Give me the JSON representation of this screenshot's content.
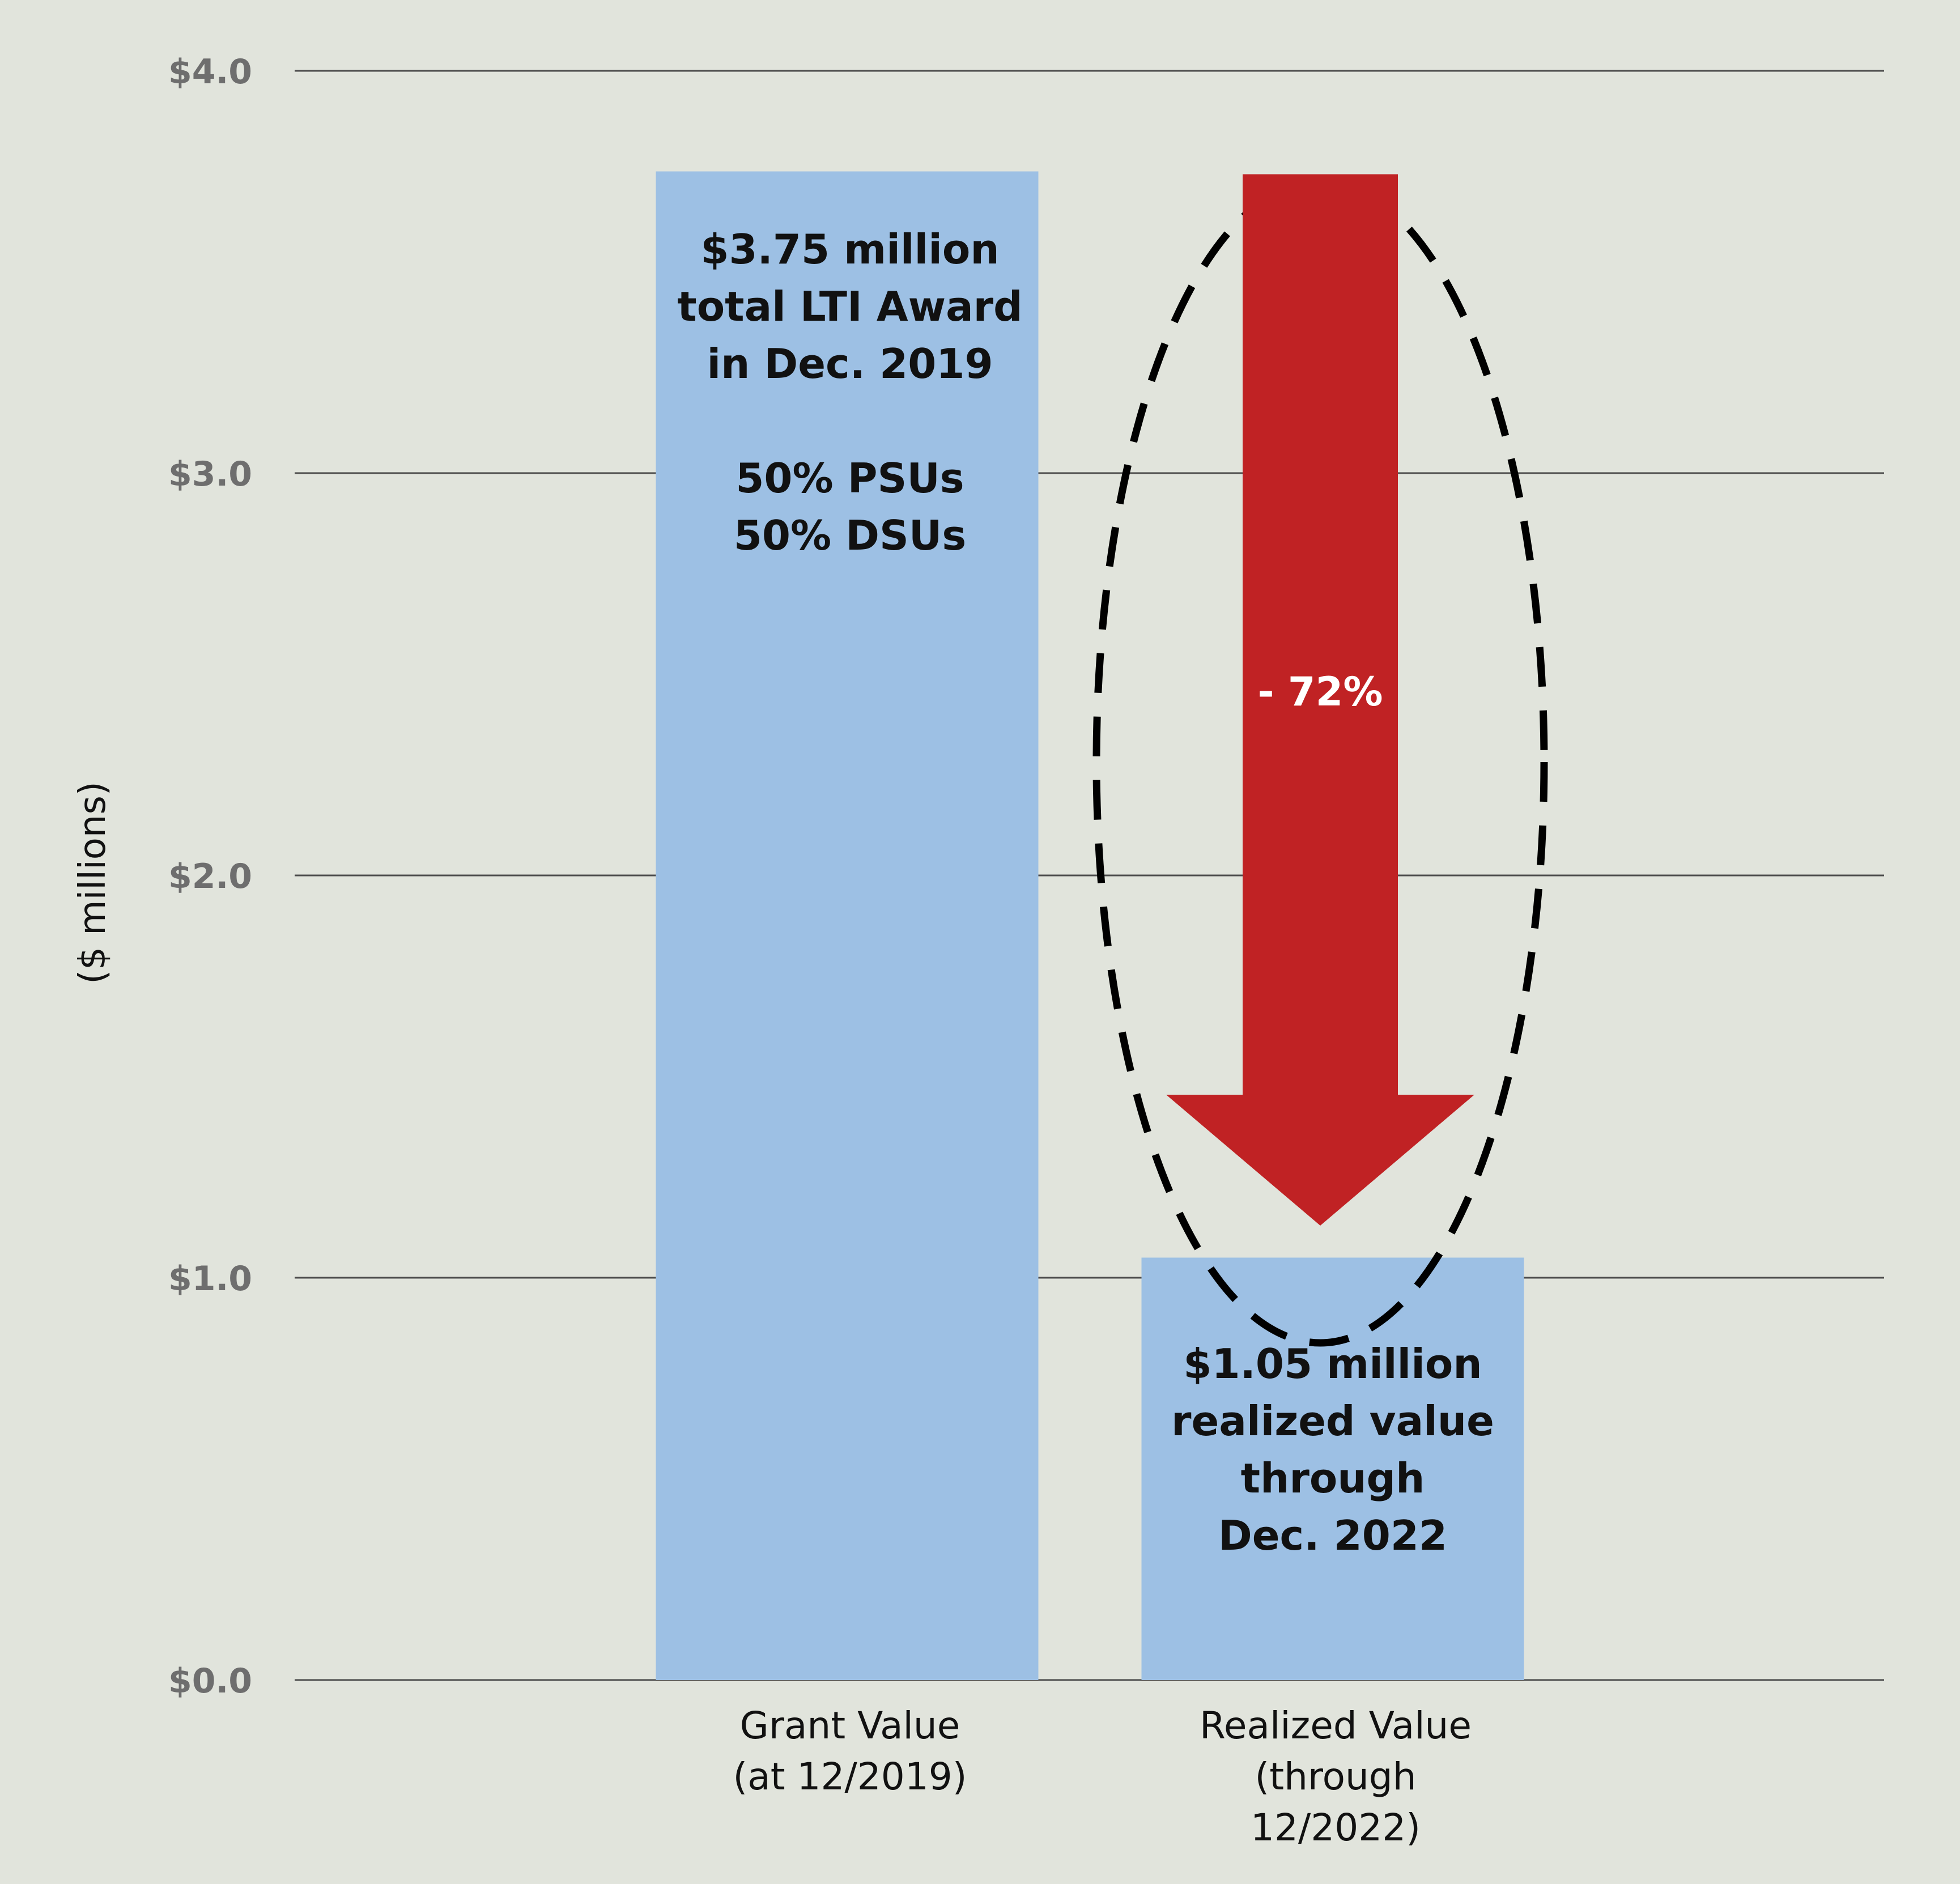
{
  "chart_data": {
    "type": "bar",
    "categories": [
      [
        "Grant Value",
        "(at 12/2019)"
      ],
      [
        "Realized Value",
        "(through",
        "12/2022)"
      ]
    ],
    "values": [
      3.75,
      1.05
    ],
    "ylabel": "($ millions)",
    "ylim": [
      0,
      4
    ],
    "yticks": [
      0,
      1,
      2,
      3,
      4
    ],
    "ytick_labels": [
      "$0.0",
      "$1.0",
      "$2.0",
      "$3.0",
      "$4.0"
    ],
    "grid": true,
    "legend": "none",
    "bar_color": "#9dc0e4",
    "bar_labels": [
      [
        "$3.75 million",
        "total LTI Award",
        "in Dec. 2019",
        "",
        "50% PSUs",
        "50% DSUs"
      ],
      [
        "$1.05 million",
        "realized value",
        "through",
        "Dec. 2022"
      ]
    ],
    "annotation": {
      "type": "arrow-down",
      "label": "- 72%",
      "from": 3.75,
      "to": 1.05,
      "color": "#c02224",
      "highlight": "dashed-ellipse"
    }
  }
}
